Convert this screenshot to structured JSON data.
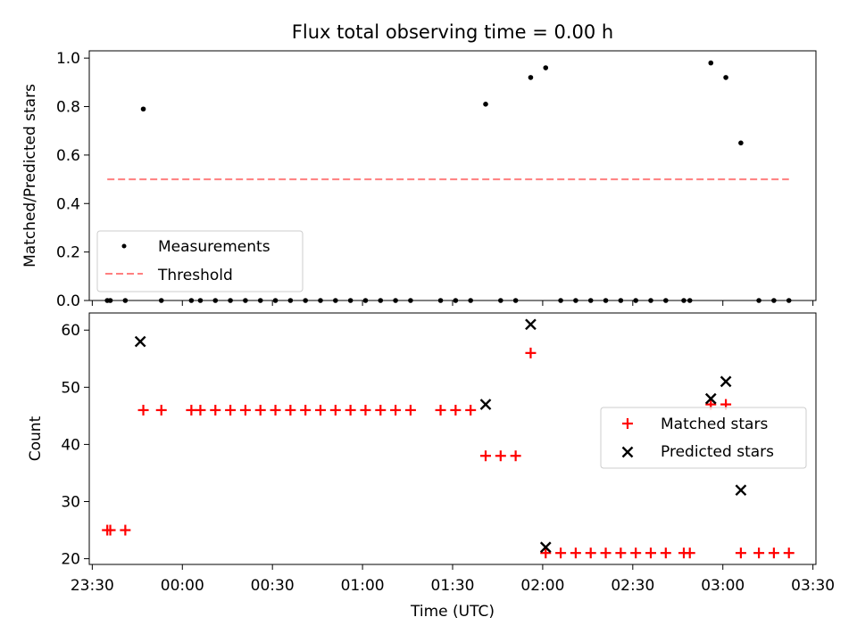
{
  "title": "Flux total observing time = 0.00 h",
  "colors": {
    "measurement": "#000000",
    "threshold": "#ff7f7f",
    "matched": "#ff0000",
    "predicted": "#000000"
  },
  "chart_data": [
    {
      "type": "scatter",
      "ylabel": "Matched/Predicted stars",
      "ylim": [
        0,
        1.03
      ],
      "yticks": [
        "0.0",
        "0.2",
        "0.4",
        "0.6",
        "0.8",
        "1.0"
      ],
      "legend_position": "lower-left",
      "x_time": [
        "23:35",
        "23:36",
        "23:41",
        "23:47",
        "23:53",
        "00:03",
        "00:06",
        "00:11",
        "00:16",
        "00:21",
        "00:26",
        "00:31",
        "00:36",
        "00:41",
        "00:46",
        "00:51",
        "00:56",
        "01:01",
        "01:06",
        "01:11",
        "01:16",
        "01:26",
        "01:31",
        "01:36",
        "01:41",
        "01:46",
        "01:51",
        "01:56",
        "02:01",
        "02:06",
        "02:11",
        "02:16",
        "02:21",
        "02:26",
        "02:31",
        "02:36",
        "02:41",
        "02:47",
        "02:49",
        "02:56",
        "03:01",
        "03:06",
        "03:12",
        "03:17",
        "03:22"
      ],
      "series": [
        {
          "name": "Measurements",
          "marker": "dot",
          "y": [
            0,
            0,
            0,
            0.79,
            0,
            0,
            0,
            0,
            0,
            0,
            0,
            0,
            0,
            0,
            0,
            0,
            0,
            0,
            0,
            0,
            0,
            0,
            0,
            0,
            0.81,
            0,
            0,
            0.92,
            0.96,
            0,
            0,
            0,
            0,
            0,
            0,
            0,
            0,
            0,
            0,
            0.98,
            0.92,
            0.65,
            0,
            0,
            0
          ]
        },
        {
          "name": "Threshold",
          "marker": "dashed-line",
          "x_time": [
            "23:35",
            "03:22"
          ],
          "y": [
            0.5,
            0.5
          ]
        }
      ]
    },
    {
      "type": "scatter",
      "xlabel": "Time (UTC)",
      "ylabel": "Count",
      "ylim": [
        19,
        63
      ],
      "yticks": [
        "20",
        "30",
        "40",
        "50",
        "60"
      ],
      "xlim": [
        "23:29",
        "03:31"
      ],
      "xticks": [
        "23:30",
        "00:00",
        "00:30",
        "01:00",
        "01:30",
        "02:00",
        "02:30",
        "03:00",
        "03:30"
      ],
      "legend_position": "center-right",
      "x_time": [
        "23:35",
        "23:36",
        "23:41",
        "23:47",
        "23:53",
        "00:03",
        "00:06",
        "00:11",
        "00:16",
        "00:21",
        "00:26",
        "00:31",
        "00:36",
        "00:41",
        "00:46",
        "00:51",
        "00:56",
        "01:01",
        "01:06",
        "01:11",
        "01:16",
        "01:26",
        "01:31",
        "01:36",
        "01:41",
        "01:46",
        "01:51",
        "01:56",
        "02:01",
        "02:06",
        "02:11",
        "02:16",
        "02:21",
        "02:26",
        "02:31",
        "02:36",
        "02:41",
        "02:47",
        "02:49",
        "02:56",
        "03:01",
        "03:06",
        "03:12",
        "03:17",
        "03:22"
      ],
      "series": [
        {
          "name": "Matched stars",
          "marker": "plus",
          "y": [
            25,
            25,
            25,
            46,
            46,
            46,
            46,
            46,
            46,
            46,
            46,
            46,
            46,
            46,
            46,
            46,
            46,
            46,
            46,
            46,
            46,
            46,
            46,
            46,
            38,
            38,
            38,
            56,
            21,
            21,
            21,
            21,
            21,
            21,
            21,
            21,
            21,
            21,
            21,
            47,
            47,
            21,
            21,
            21,
            21
          ]
        },
        {
          "name": "Predicted stars",
          "marker": "x",
          "points": [
            [
              "23:46",
              58
            ],
            [
              "01:41",
              47
            ],
            [
              "01:56",
              61
            ],
            [
              "02:01",
              22
            ],
            [
              "02:56",
              48
            ],
            [
              "03:01",
              51
            ],
            [
              "03:06",
              32
            ]
          ]
        }
      ]
    }
  ]
}
